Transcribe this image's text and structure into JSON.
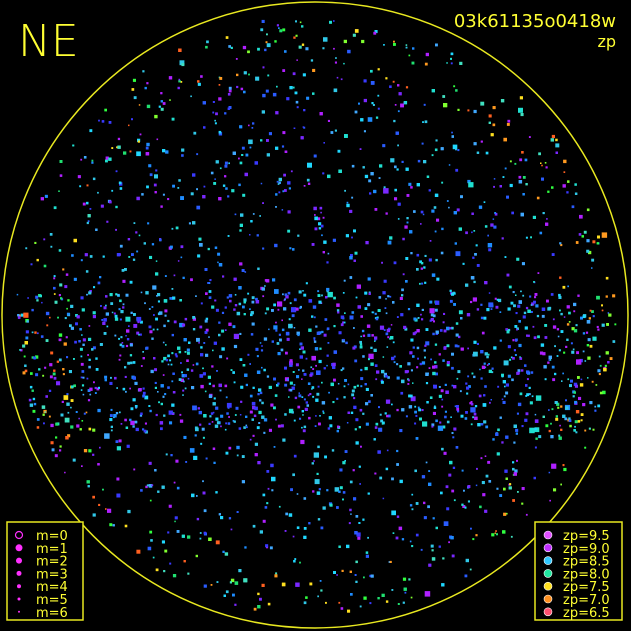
{
  "header": {
    "direction": "NE",
    "image_id": "03k61135o0418w",
    "mode": "zp"
  },
  "magnitude_legend": [
    "m=0",
    "m=1",
    "m=2",
    "m=3",
    "m=4",
    "m=5",
    "m=6"
  ],
  "zp_legend": [
    "zp=9.5",
    "zp=9.0",
    "zp=8.5",
    "zp=8.0",
    "zp=7.5",
    "zp=7.0",
    "zp=6.5"
  ]
}
